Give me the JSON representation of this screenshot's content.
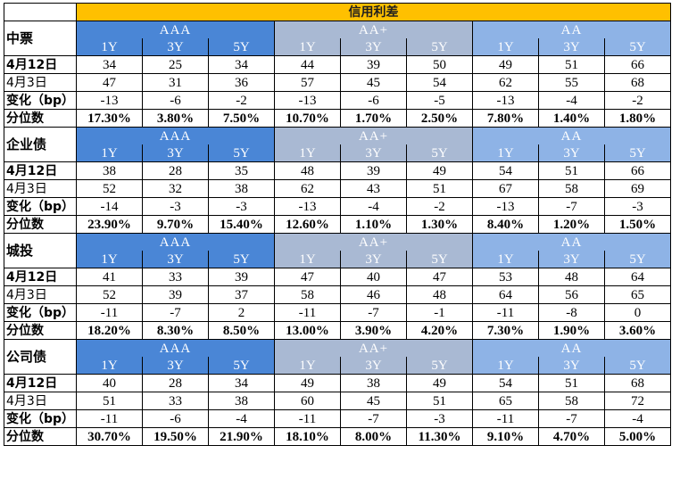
{
  "title": "信用利差",
  "groups": [
    "AAA",
    "AA+",
    "AA"
  ],
  "tenors": [
    "1Y",
    "3Y",
    "5Y"
  ],
  "row_labels": [
    "4月12日",
    "4月3日",
    "变化（bp）",
    "分位数"
  ],
  "sections": [
    {
      "name": "中票",
      "rows": [
        [
          "34",
          "25",
          "34",
          "44",
          "39",
          "50",
          "49",
          "51",
          "66"
        ],
        [
          "47",
          "31",
          "36",
          "57",
          "45",
          "54",
          "62",
          "55",
          "68"
        ],
        [
          "-13",
          "-6",
          "-2",
          "-13",
          "-6",
          "-5",
          "-13",
          "-4",
          "-2"
        ],
        [
          "17.30%",
          "3.80%",
          "7.50%",
          "10.70%",
          "1.70%",
          "2.50%",
          "7.80%",
          "1.40%",
          "1.80%"
        ]
      ]
    },
    {
      "name": "企业债",
      "rows": [
        [
          "38",
          "28",
          "35",
          "48",
          "39",
          "49",
          "54",
          "51",
          "66"
        ],
        [
          "52",
          "32",
          "38",
          "62",
          "43",
          "51",
          "67",
          "58",
          "69"
        ],
        [
          "-14",
          "-3",
          "-3",
          "-13",
          "-4",
          "-2",
          "-13",
          "-7",
          "-3"
        ],
        [
          "23.90%",
          "9.70%",
          "15.40%",
          "12.60%",
          "1.10%",
          "1.30%",
          "8.40%",
          "1.20%",
          "1.50%"
        ]
      ]
    },
    {
      "name": "城投",
      "rows": [
        [
          "41",
          "33",
          "39",
          "47",
          "40",
          "47",
          "53",
          "48",
          "64"
        ],
        [
          "52",
          "39",
          "37",
          "58",
          "46",
          "48",
          "64",
          "56",
          "65"
        ],
        [
          "-11",
          "-7",
          "2",
          "-11",
          "-7",
          "-1",
          "-11",
          "-8",
          "0"
        ],
        [
          "18.20%",
          "8.30%",
          "8.50%",
          "13.00%",
          "3.90%",
          "4.20%",
          "7.30%",
          "1.90%",
          "3.60%"
        ]
      ]
    },
    {
      "name": "公司债",
      "rows": [
        [
          "40",
          "28",
          "34",
          "49",
          "38",
          "49",
          "54",
          "51",
          "68"
        ],
        [
          "51",
          "33",
          "38",
          "60",
          "45",
          "51",
          "65",
          "58",
          "72"
        ],
        [
          "-11",
          "-6",
          "-4",
          "-11",
          "-7",
          "-3",
          "-11",
          "-7",
          "-4"
        ],
        [
          "30.70%",
          "19.50%",
          "21.90%",
          "18.10%",
          "8.00%",
          "11.30%",
          "9.10%",
          "4.70%",
          "5.00%"
        ]
      ]
    }
  ]
}
